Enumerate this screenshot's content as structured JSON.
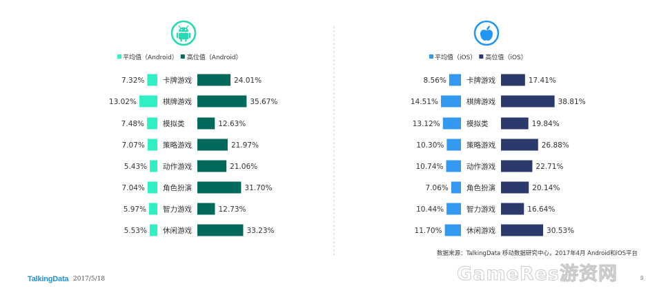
{
  "footer": {
    "logo": "TalkingData",
    "date": "2017/5/18",
    "watermark": "GameRes游资网",
    "page": "9"
  },
  "source_note": "数据来源：TalkingData 移动数据研究中心，2017年4月 Android和iOS平台",
  "colors": {
    "android_avg": "#2ff0c4",
    "android_high": "#03695a",
    "ios_avg": "#3399ee",
    "ios_high": "#2b3a6b",
    "android_icon": "#27d8b4",
    "ios_icon": "#2196f3",
    "divider": "#cccccc"
  },
  "chart_data": [
    {
      "type": "bar",
      "platform_icon": "android-icon",
      "categories": [
        "卡牌游戏",
        "棋牌游戏",
        "模拟类",
        "策略游戏",
        "动作游戏",
        "角色扮演",
        "智力游戏",
        "休闲游戏"
      ],
      "series": [
        {
          "name": "平均值（Android）",
          "values": [
            7.32,
            13.02,
            7.48,
            7.07,
            5.43,
            7.04,
            5.97,
            5.53
          ]
        },
        {
          "name": "高位值（Android）",
          "values": [
            24.01,
            35.67,
            12.63,
            21.97,
            21.06,
            31.7,
            12.73,
            33.23
          ]
        }
      ],
      "labels": {
        "avg": [
          "7.32%",
          "13.02%",
          "7.48%",
          "7.07%",
          "5.43%",
          "7.04%",
          "5.97%",
          "5.53%"
        ],
        "high": [
          "24.01%",
          "35.67%",
          "12.63%",
          "21.97%",
          "21.06%",
          "31.70%",
          "12.73%",
          "33.23%"
        ]
      },
      "legend_position": "top",
      "grid": false
    },
    {
      "type": "bar",
      "platform_icon": "apple-icon",
      "categories": [
        "卡牌游戏",
        "棋牌游戏",
        "模拟类",
        "策略游戏",
        "动作游戏",
        "角色扮演",
        "智力游戏",
        "休闲游戏"
      ],
      "series": [
        {
          "name": "平均值（iOS）",
          "values": [
            8.56,
            14.51,
            13.12,
            10.3,
            10.74,
            7.06,
            10.44,
            11.7
          ]
        },
        {
          "name": "高位值（iOS）",
          "values": [
            17.41,
            38.81,
            19.84,
            26.88,
            22.71,
            20.14,
            16.64,
            30.53
          ]
        }
      ],
      "labels": {
        "avg": [
          "8.56%",
          "14.51%",
          "13.12%",
          "10.30%",
          "10.74%",
          "7.06%",
          "10.44%",
          "11.70%"
        ],
        "high": [
          "17.41%",
          "38.81%",
          "19.84%",
          "26.88%",
          "22.71%",
          "20.14%",
          "16.64%",
          "30.53%"
        ]
      },
      "legend_position": "top",
      "grid": false
    }
  ]
}
